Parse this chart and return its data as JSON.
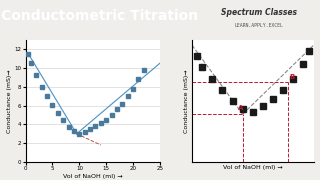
{
  "title": "Conductometric Titration",
  "title_bg": "#c0192c",
  "title_color": "white",
  "logo_text": "Spectrum Classes",
  "logo_subtext": "LEARN.APPLY.EXCEL",
  "bg_color": "#f0eeea",
  "plot_bg": "white",
  "left_plot": {
    "xlabel": "Vol of NaOH (ml) →",
    "ylabel": "Conductance (mS)→",
    "xlim": [
      0,
      25
    ],
    "ylim": [
      0,
      13
    ],
    "x_ticks": [
      0,
      5,
      10,
      15,
      20,
      25
    ],
    "y_ticks": [
      0,
      2,
      4,
      6,
      8,
      10,
      12
    ],
    "data_x": [
      0.5,
      1,
      2,
      3,
      4,
      5,
      6,
      7,
      8,
      9,
      10,
      11,
      12,
      13,
      14,
      15,
      16,
      17,
      18,
      19,
      20,
      21,
      22
    ],
    "data_y": [
      11.5,
      10.5,
      9.2,
      8.0,
      7.0,
      6.1,
      5.2,
      4.5,
      3.7,
      3.3,
      3.0,
      3.2,
      3.5,
      3.8,
      4.1,
      4.5,
      5.0,
      5.6,
      6.2,
      7.0,
      7.8,
      8.8,
      9.8
    ],
    "line1_x": [
      0.5,
      9.5
    ],
    "line1_y": [
      11.5,
      3.0
    ],
    "line2_x": [
      9.5,
      25
    ],
    "line2_y": [
      3.0,
      10.5
    ],
    "line3_x": [
      9.5,
      14
    ],
    "line3_y": [
      3.0,
      1.8
    ],
    "line_color": "#4a90c4",
    "line3_color": "#c0503c",
    "marker_color": "#4a7a9b",
    "marker_size": 3
  },
  "right_plot": {
    "xlabel": "Vol of NaOH (ml) →",
    "ylabel": "Conductance (mS)→",
    "xlim": [
      0,
      12
    ],
    "ylim": [
      0,
      11
    ],
    "data_x": [
      0.5,
      1,
      2,
      3,
      4,
      5,
      6,
      7,
      8,
      9,
      10,
      11,
      11.5
    ],
    "data_y": [
      9.5,
      8.5,
      7.5,
      6.5,
      5.5,
      4.8,
      4.5,
      5.0,
      5.7,
      6.5,
      7.5,
      8.8,
      10.0
    ],
    "line1_x": [
      0,
      5
    ],
    "line1_y": [
      10.5,
      4.3
    ],
    "line2_x": [
      5,
      12
    ],
    "line2_y": [
      4.3,
      10.5
    ],
    "line_color": "#888888",
    "marker_color": "#1a1a1a",
    "marker_size": 5,
    "point_A_x": 5,
    "point_A_y": 4.3,
    "point_B_x": 9.5,
    "point_B_y": 7.2,
    "label_A": "A",
    "label_B": "B",
    "label_color": "#c0192c",
    "vline_A_x": 5,
    "vline_B_x": 9.5
  }
}
